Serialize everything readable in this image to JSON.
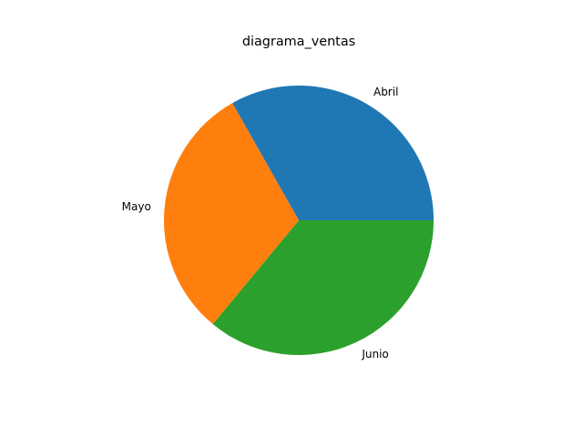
{
  "chart_data": {
    "type": "pie",
    "title": "diagrama_ventas",
    "start_angle_deg": 0,
    "direction": "counterclockwise",
    "categories": [
      "Abril",
      "Mayo",
      "Junio"
    ],
    "values": [
      33.2,
      30.8,
      36.0
    ],
    "colors": [
      "#1f77b4",
      "#ff7f0e",
      "#2ca02c"
    ],
    "legend": "none",
    "grid": false
  }
}
